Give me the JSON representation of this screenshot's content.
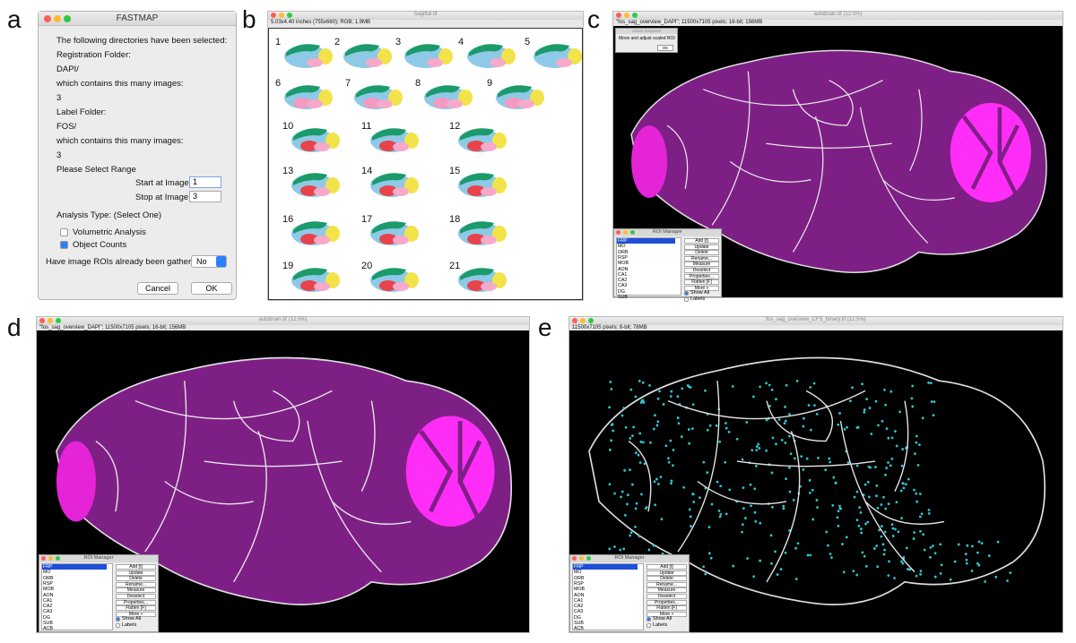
{
  "fastmap": {
    "panel_label": "a",
    "title": "FASTMAP",
    "lines": [
      "The following directories have been selected:",
      "Registration Folder:",
      "DAPI/",
      "which contains this many images:",
      "3",
      "Label Folder:",
      "FOS/",
      "which contains this many images:",
      "3",
      "Please Select Range"
    ],
    "start_label": "Start at Image:",
    "start_value": "1",
    "stop_label": "Stop at Image:",
    "stop_value": "3",
    "analysis_label": "Analysis Type: (Select One)",
    "options": [
      {
        "label": "Volumetric Analysis",
        "checked": false
      },
      {
        "label": "Object Counts",
        "checked": true
      }
    ],
    "question": "Have image ROIs already been gathered?",
    "select": "No",
    "buttons": [
      "Cancel",
      "OK"
    ]
  },
  "atlas": {
    "panel_label": "b",
    "title": "Sagittal.tif",
    "info": "5.03x4.40 inches (755x660); RGB; 1.9MB",
    "sections": [
      "1",
      "2",
      "3",
      "4",
      "5",
      "6",
      "7",
      "8",
      "9",
      "10",
      "11",
      "12",
      "13",
      "14",
      "15",
      "16",
      "17",
      "18",
      "19",
      "20",
      "21"
    ]
  },
  "panel_c": {
    "panel_label": "c",
    "title": "autobrain.tif (12.5%)",
    "info": "\"fos_sag_overview_DAPI\"; 11500x7105 pixels; 16-bit; 156MB",
    "dialog": {
      "title": "Action Required",
      "message": "Move and adjust scaled ROI",
      "button": "OK"
    },
    "roi_manager": {
      "title": "ROI Manager",
      "items": [
        "FRP",
        "MO",
        "ORB",
        "RSP",
        "MOB",
        "AON",
        "CA1",
        "CA2",
        "CA3",
        "DG",
        "SUB"
      ],
      "buttons": [
        "Add [t]",
        "Update",
        "Delete",
        "Rename...",
        "Measure",
        "Deselect",
        "Properties...",
        "Flatten [F]",
        "More »"
      ],
      "show_all": {
        "label": "Show All",
        "checked": true
      },
      "labels": {
        "label": "Labels",
        "checked": false
      }
    }
  },
  "panel_d": {
    "panel_label": "d",
    "title": "autobrain.tif (12.5%)",
    "info": "\"fos_sag_overview_DAPI\"; 11500x7105 pixels; 16-bit; 156MB",
    "roi_manager": {
      "title": "ROI Manager",
      "items": [
        "FRP",
        "MO",
        "ORB",
        "RSP",
        "MOB",
        "AON",
        "CA1",
        "CA2",
        "CA3",
        "DG",
        "SUB",
        "ACB"
      ],
      "buttons": [
        "Add [t]",
        "Update",
        "Delete",
        "Rename...",
        "Measure",
        "Deselect",
        "Properties...",
        "Flatten [F]",
        "More »"
      ],
      "show_all": {
        "label": "Show All",
        "checked": true
      },
      "labels": {
        "label": "Labels",
        "checked": false
      }
    }
  },
  "panel_e": {
    "panel_label": "e",
    "title": "fos_sag_overview_CFS_binary.tif (12.5%)",
    "info": "11500x7105 pixels; 8-bit; 78MB",
    "roi_manager": {
      "title": "ROI Manager",
      "items": [
        "FRP",
        "MO",
        "ORB",
        "RSP",
        "MOB",
        "AON",
        "CA1",
        "CA2",
        "CA3",
        "DG",
        "SUB",
        "ACB"
      ],
      "buttons": [
        "Add [t]",
        "Update",
        "Delete",
        "Rename...",
        "Measure",
        "Deselect",
        "Properties...",
        "Flatten [F]",
        "More »"
      ],
      "show_all": {
        "label": "Show All",
        "checked": true
      },
      "labels": {
        "label": "Labels",
        "checked": false
      }
    }
  }
}
